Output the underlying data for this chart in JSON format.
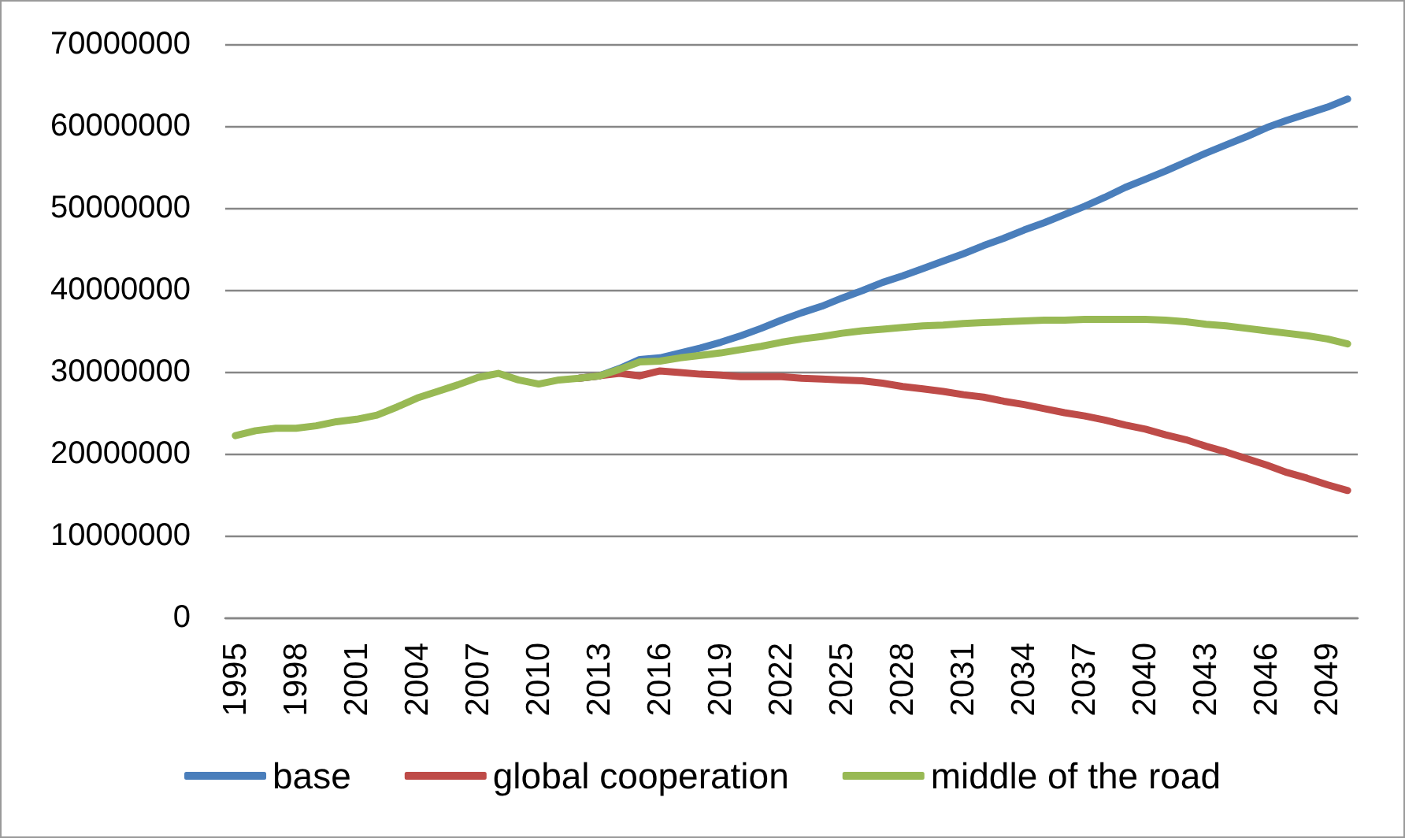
{
  "chart_data": {
    "type": "line",
    "categories": [
      "1995",
      null,
      null,
      "1998",
      null,
      null,
      "2001",
      null,
      null,
      "2004",
      null,
      null,
      "2007",
      null,
      null,
      "2010",
      null,
      null,
      "2013",
      null,
      null,
      "2016",
      null,
      null,
      "2019",
      null,
      null,
      "2022",
      null,
      null,
      "2025",
      null,
      null,
      "2028",
      null,
      null,
      "2031",
      null,
      null,
      "2034",
      null,
      null,
      "2037",
      null,
      null,
      "2040",
      null,
      null,
      "2043",
      null,
      null,
      "2046",
      null,
      null,
      "2049",
      null
    ],
    "series": [
      {
        "name": "base",
        "color": "#4a7ebb",
        "values": [
          null,
          null,
          null,
          null,
          null,
          null,
          null,
          null,
          null,
          null,
          null,
          null,
          null,
          null,
          null,
          null,
          null,
          29200000,
          29500000,
          30400000,
          31500000,
          31700000,
          32300000,
          32900000,
          33600000,
          34400000,
          35300000,
          36300000,
          37200000,
          38000000,
          39000000,
          39900000,
          40900000,
          41700000,
          42600000,
          43500000,
          44400000,
          45400000,
          46300000,
          47300000,
          48200000,
          49200000,
          50200000,
          51300000,
          52500000,
          53500000,
          54500000,
          55600000,
          56700000,
          57700000,
          58700000,
          59800000,
          60700000,
          61500000,
          62300000,
          63300000
        ]
      },
      {
        "name": "global cooperation",
        "color": "#be4b48",
        "values": [
          null,
          null,
          null,
          null,
          null,
          null,
          null,
          null,
          null,
          null,
          null,
          null,
          null,
          null,
          null,
          null,
          null,
          29200000,
          29500000,
          29800000,
          29500000,
          30100000,
          29900000,
          29700000,
          29600000,
          29400000,
          29400000,
          29400000,
          29200000,
          29100000,
          29000000,
          28900000,
          28600000,
          28200000,
          27900000,
          27600000,
          27200000,
          26900000,
          26400000,
          26000000,
          25500000,
          25000000,
          24600000,
          24100000,
          23500000,
          23000000,
          22300000,
          21700000,
          20900000,
          20200000,
          19400000,
          18600000,
          17700000,
          17000000,
          16200000,
          15500000
        ]
      },
      {
        "name": "middle of the road",
        "color": "#98b954",
        "values": [
          22200000,
          22800000,
          23100000,
          23100000,
          23400000,
          23900000,
          24200000,
          24700000,
          25700000,
          26800000,
          27600000,
          28400000,
          29300000,
          29800000,
          29000000,
          28500000,
          29000000,
          29200000,
          29500000,
          30300000,
          31200000,
          31300000,
          31700000,
          32000000,
          32300000,
          32700000,
          33100000,
          33600000,
          34000000,
          34300000,
          34700000,
          35000000,
          35200000,
          35400000,
          35600000,
          35700000,
          35900000,
          36000000,
          36100000,
          36200000,
          36300000,
          36300000,
          36400000,
          36400000,
          36400000,
          36400000,
          36300000,
          36100000,
          35800000,
          35600000,
          35300000,
          35000000,
          34700000,
          34400000,
          34000000,
          33400000
        ]
      }
    ],
    "ylim": [
      0,
      70000000
    ],
    "yticks": [
      0,
      10000000,
      20000000,
      30000000,
      40000000,
      50000000,
      60000000,
      70000000
    ],
    "grid": "y",
    "legend": "bottom",
    "marker": "none",
    "line_style": "solid"
  }
}
